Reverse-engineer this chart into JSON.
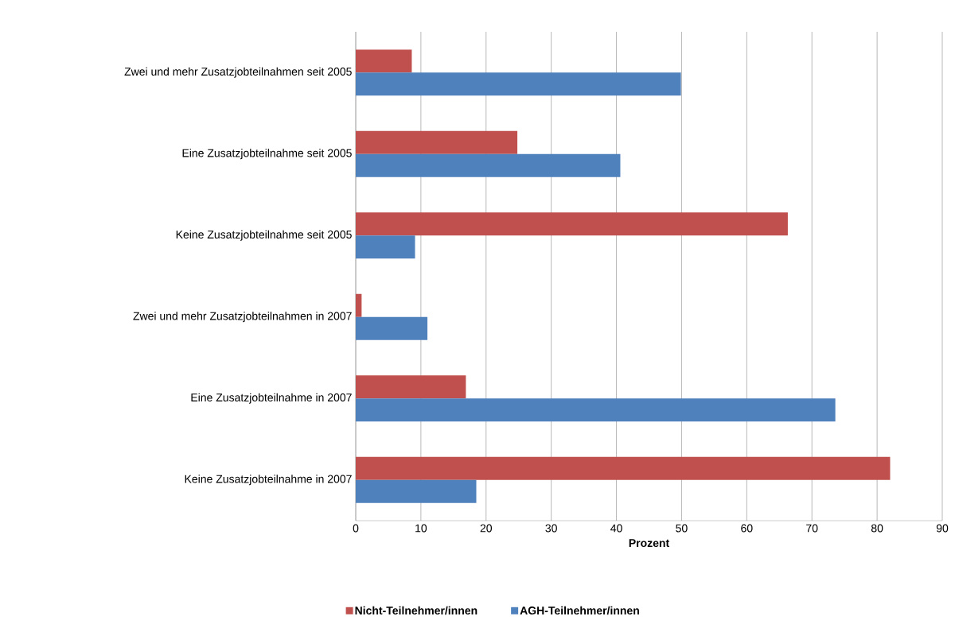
{
  "chart_data": {
    "type": "bar",
    "orientation": "horizontal",
    "categories": [
      "Zwei und mehr Zusatzjobteilnahmen seit 2005",
      "Eine Zusatzjobteilnahme seit 2005",
      "Keine Zusatzjobteilnahme seit 2005",
      "Zwei und mehr Zusatzjobteilnahmen in 2007",
      "Eine Zusatzjobteilnahme in 2007",
      "Keine Zusatzjobteilnahme in 2007"
    ],
    "series": [
      {
        "name": "Nicht-Teilnehmer/innen",
        "color": "#c0504d",
        "values": [
          8.6,
          24.8,
          66.3,
          0.9,
          16.9,
          82.0
        ]
      },
      {
        "name": "AGH-Teilnehmer/innen",
        "color": "#4f81bd",
        "values": [
          49.9,
          40.6,
          9.1,
          11.0,
          73.6,
          18.5
        ]
      }
    ],
    "xlim": [
      0,
      90
    ],
    "xticks": [
      0,
      10,
      20,
      30,
      40,
      50,
      60,
      70,
      80,
      90
    ],
    "xlabel": "Prozent",
    "grid": "x",
    "legend": "bottom"
  }
}
